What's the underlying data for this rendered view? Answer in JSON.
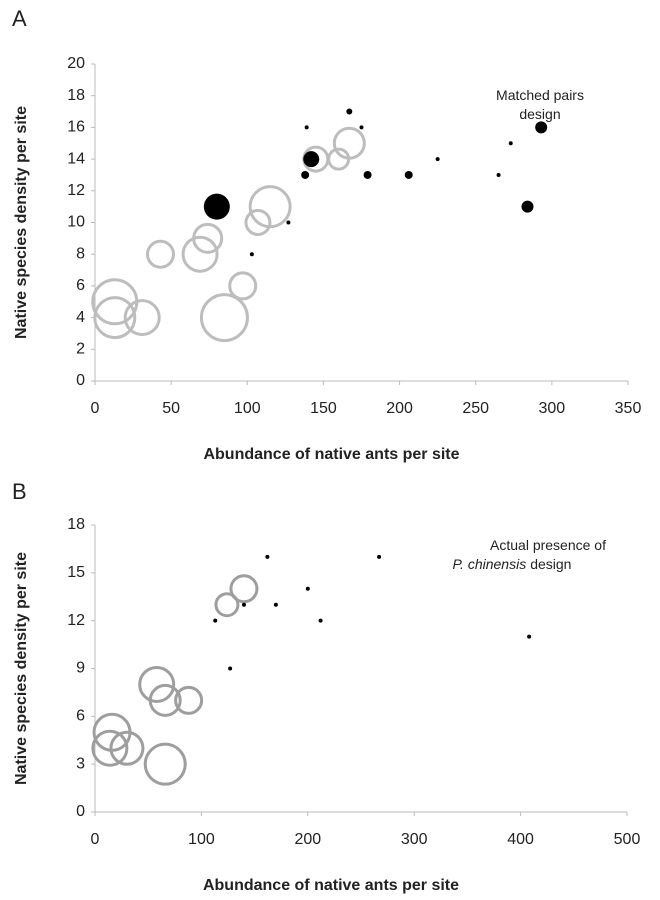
{
  "chart_data": [
    {
      "type": "scatter",
      "panel": "A",
      "annotation": [
        "Matched pairs",
        "design"
      ],
      "x_label": "Abundance of native ants per site",
      "y_label": "Native species density per site",
      "xlim": [
        0,
        350
      ],
      "xticks": [
        0,
        50,
        100,
        150,
        200,
        250,
        300,
        350
      ],
      "ylim": [
        0,
        20
      ],
      "yticks": [
        0,
        2,
        4,
        6,
        8,
        10,
        12,
        14,
        16,
        18,
        20
      ],
      "series": [
        {
          "color": "#bdbdbd",
          "filled": false,
          "x": [
            13,
            13,
            31,
            43,
            74,
            69,
            85,
            97,
            107,
            115,
            145,
            160,
            167
          ],
          "values": [
            5,
            4,
            4,
            8,
            9,
            8,
            4,
            6,
            10,
            11,
            14,
            14,
            15
          ],
          "sizes": [
            22,
            20,
            17,
            13,
            14,
            17,
            23,
            13,
            12,
            20,
            12,
            10,
            15
          ]
        },
        {
          "color": "#000000",
          "filled": true,
          "x": [
            80,
            142,
            138,
            139,
            127,
            103,
            167,
            175,
            179,
            206,
            225,
            265,
            273,
            284,
            293
          ],
          "values": [
            11,
            14,
            13,
            16,
            10,
            8,
            17,
            16,
            13,
            13,
            14,
            13,
            15,
            11,
            16
          ],
          "sizes": [
            13,
            8,
            4,
            2,
            2,
            2,
            3,
            2,
            4,
            4,
            2,
            2,
            2,
            6,
            6
          ]
        }
      ]
    },
    {
      "type": "scatter",
      "panel": "B",
      "annotation": [
        "Actual presence of"
      ],
      "annotation_italic": "P. chinensis",
      "annotation_tail": "design",
      "x_label": "Abundance of native ants per site",
      "y_label": "Native species density per site",
      "xlim": [
        0,
        500
      ],
      "xticks": [
        0,
        100,
        200,
        300,
        400,
        500
      ],
      "ylim": [
        0,
        18
      ],
      "yticks": [
        0,
        3,
        6,
        9,
        12,
        15,
        18
      ],
      "series": [
        {
          "color": "#9e9e9e",
          "filled": false,
          "x": [
            16,
            14,
            30,
            58,
            66,
            88,
            66,
            124,
            140
          ],
          "values": [
            5,
            4,
            4,
            8,
            7,
            7,
            3,
            13,
            14
          ],
          "sizes": [
            18,
            17,
            16,
            17,
            15,
            13,
            20,
            11,
            13
          ]
        },
        {
          "color": "#000000",
          "filled": true,
          "x": [
            113,
            127,
            140,
            162,
            170,
            200,
            212,
            267,
            408
          ],
          "values": [
            12,
            9,
            13,
            16,
            13,
            14,
            12,
            16,
            11
          ],
          "sizes": [
            2,
            2,
            2,
            2,
            2,
            2,
            2,
            2,
            2
          ]
        }
      ]
    }
  ]
}
